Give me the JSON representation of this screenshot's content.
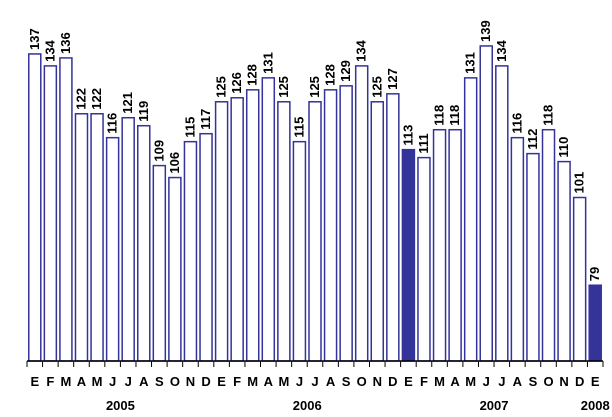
{
  "chart_data": {
    "type": "bar",
    "title": "",
    "xlabel": "",
    "ylabel": "",
    "ylim": [
      60,
      142
    ],
    "grid": false,
    "legend": "none",
    "colors": {
      "bar_outline": "#333399",
      "bar_fill_default": "#ffffff",
      "bar_fill_highlight": "#333399",
      "axis": "#000000"
    },
    "categories": [
      "E",
      "F",
      "M",
      "A",
      "M",
      "J",
      "J",
      "A",
      "S",
      "O",
      "N",
      "D",
      "E",
      "F",
      "M",
      "A",
      "M",
      "J",
      "J",
      "A",
      "S",
      "O",
      "N",
      "D",
      "E",
      "F",
      "M",
      "A",
      "M",
      "J",
      "J",
      "A",
      "S",
      "O",
      "N",
      "D",
      "E"
    ],
    "values": [
      137,
      134,
      136,
      122,
      122,
      116,
      121,
      119,
      109,
      106,
      115,
      117,
      125,
      126,
      128,
      131,
      125,
      115,
      125,
      128,
      129,
      134,
      125,
      127,
      113,
      111,
      118,
      118,
      131,
      139,
      134,
      116,
      112,
      118,
      110,
      101,
      79
    ],
    "highlighted_indices": [
      24,
      36
    ],
    "year_groups": [
      {
        "label": "2005",
        "start": 0,
        "end": 11
      },
      {
        "label": "2006",
        "start": 12,
        "end": 23
      },
      {
        "label": "2007",
        "start": 24,
        "end": 35
      },
      {
        "label": "2008",
        "start": 36,
        "end": 36
      }
    ]
  }
}
